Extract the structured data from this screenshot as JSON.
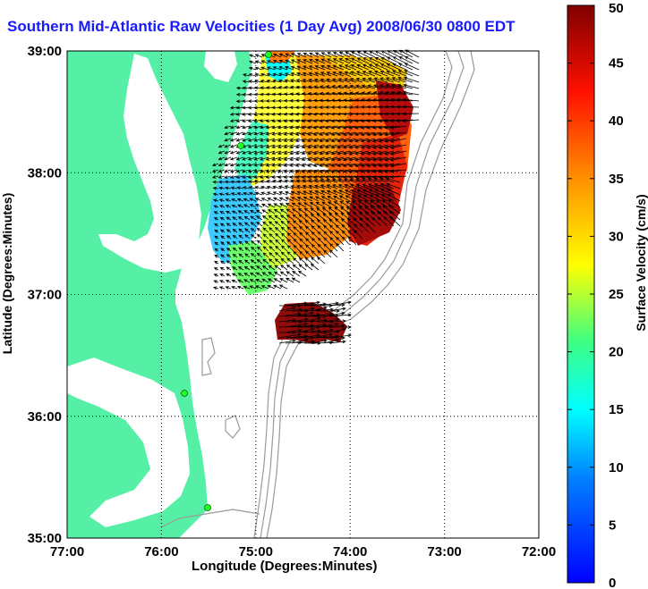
{
  "title": "Southern Mid-Atlantic Raw Velocities (1 Day Avg) 2008/06/30 0800 EDT",
  "xlabel": "Longitude (Degrees:Minutes)",
  "ylabel": "Latitude (Degrees:Minutes)",
  "colorbar_label": "Surface Velocity (cm/s)",
  "colors": {
    "land": "#55f0a6",
    "background": "#ffffff",
    "title": "#1a1aff",
    "bathymetry": "#9a9a9a",
    "vectors": "#000000",
    "station": "#22ff22"
  },
  "map": {
    "x_ticks": [
      "77:00",
      "76:00",
      "75:00",
      "74:00",
      "73:00",
      "72:00"
    ],
    "y_ticks": [
      "39:00",
      "38:00",
      "37:00",
      "36:00",
      "35:00"
    ],
    "grid": true
  },
  "colorbar": {
    "ticks": [
      "0",
      "5",
      "10",
      "15",
      "20",
      "25",
      "30",
      "35",
      "40",
      "45",
      "50"
    ],
    "range": [
      0,
      50
    ],
    "colormap": "jet"
  }
}
